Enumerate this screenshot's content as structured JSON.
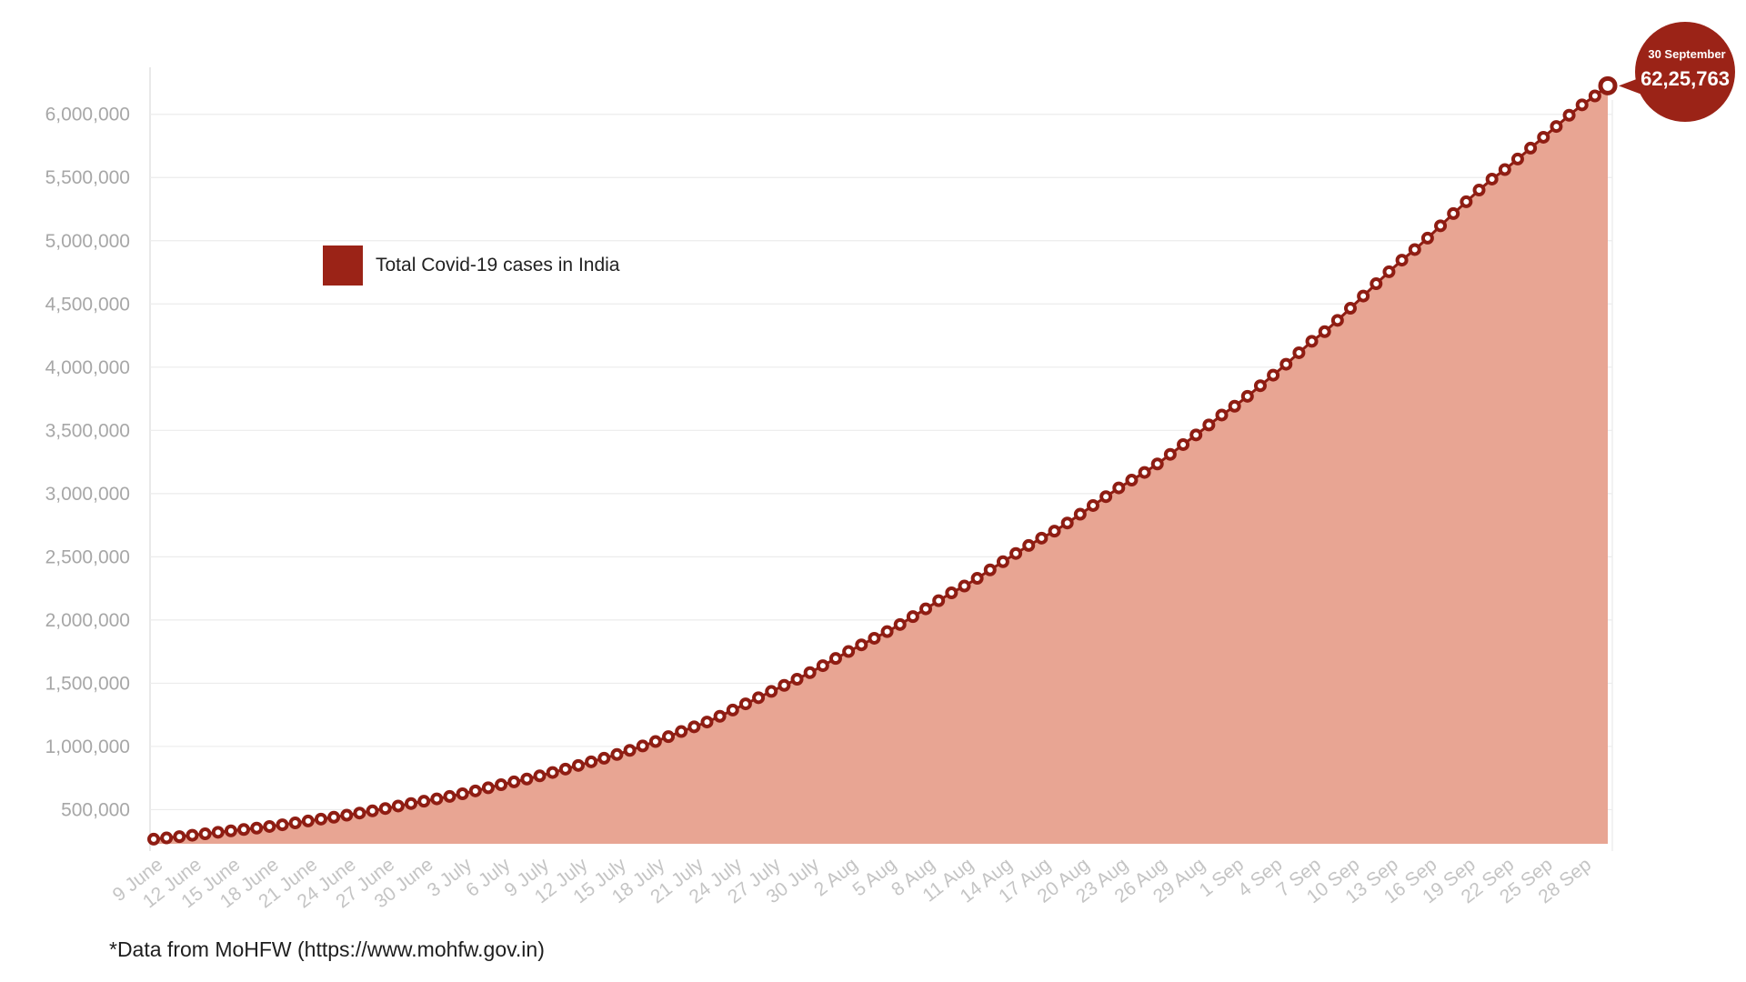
{
  "footnote": "*Data from MoHFW (https://www.mohfw.gov.in)",
  "colors": {
    "area": "#e8a593",
    "line": "#8f1d13",
    "marker_fill": "#ffffff",
    "badge": "#9b2317",
    "grid": "#ececec"
  },
  "chart_data": {
    "type": "area",
    "title": "",
    "xlabel": "",
    "ylabel": "",
    "legend": {
      "label": "Total Covid-19 cases in India",
      "position": "upper-left"
    },
    "y_ticks": [
      "500,000",
      "1,000,000",
      "1,500,000",
      "2,000,000",
      "2,500,000",
      "3,000,000",
      "3,500,000",
      "4,000,000",
      "4,500,000",
      "5,000,000",
      "5,500,000",
      "6,000,000"
    ],
    "ylim": [
      230000,
      6300000
    ],
    "x_ticks": [
      "9 June",
      "12 June",
      "15 June",
      "18 June",
      "21 June",
      "24 June",
      "27 June",
      "30 June",
      "3 July",
      "6 July",
      "9 July",
      "12 July",
      "15 July",
      "18 July",
      "21 July",
      "24 July",
      "27 July",
      "30 July",
      "2 Aug",
      "5 Aug",
      "8 Aug",
      "11 Aug",
      "14 Aug",
      "17 Aug",
      "20 Aug",
      "23 Aug",
      "26 Aug",
      "29 Aug",
      "1 Sep",
      "4 Sep",
      "7 Sep",
      "10 Sep",
      "13 Sep",
      "16 Sep",
      "19 Sep",
      "22 Sep",
      "25 Sep",
      "28 Sep"
    ],
    "x_start": "9 June",
    "x_end": "30 September",
    "annotation": {
      "date_label": "30 September",
      "value_label": "62,25,763"
    },
    "series": [
      {
        "name": "Total Covid-19 cases in India",
        "dates": [
          "9 June",
          "10 June",
          "11 June",
          "12 June",
          "13 June",
          "14 June",
          "15 June",
          "16 June",
          "17 June",
          "18 June",
          "19 June",
          "20 June",
          "21 June",
          "22 June",
          "23 June",
          "24 June",
          "25 June",
          "26 June",
          "27 June",
          "28 June",
          "29 June",
          "30 June",
          "1 July",
          "2 July",
          "3 July",
          "4 July",
          "5 July",
          "6 July",
          "7 July",
          "8 July",
          "9 July",
          "10 July",
          "11 July",
          "12 July",
          "13 July",
          "14 July",
          "15 July",
          "16 July",
          "17 July",
          "18 July",
          "19 July",
          "20 July",
          "21 July",
          "22 July",
          "23 July",
          "24 July",
          "25 July",
          "26 July",
          "27 July",
          "28 July",
          "29 July",
          "30 July",
          "31 July",
          "1 Aug",
          "2 Aug",
          "3 Aug",
          "4 Aug",
          "5 Aug",
          "6 Aug",
          "7 Aug",
          "8 Aug",
          "9 Aug",
          "10 Aug",
          "11 Aug",
          "12 Aug",
          "13 Aug",
          "14 Aug",
          "15 Aug",
          "16 Aug",
          "17 Aug",
          "18 Aug",
          "19 Aug",
          "20 Aug",
          "21 Aug",
          "22 Aug",
          "23 Aug",
          "24 Aug",
          "25 Aug",
          "26 Aug",
          "27 Aug",
          "28 Aug",
          "29 Aug",
          "30 Aug",
          "31 Aug",
          "1 Sep",
          "2 Sep",
          "3 Sep",
          "4 Sep",
          "5 Sep",
          "6 Sep",
          "7 Sep",
          "8 Sep",
          "9 Sep",
          "10 Sep",
          "11 Sep",
          "12 Sep",
          "13 Sep",
          "14 Sep",
          "15 Sep",
          "16 Sep",
          "17 Sep",
          "18 Sep",
          "19 Sep",
          "20 Sep",
          "21 Sep",
          "22 Sep",
          "23 Sep",
          "24 Sep",
          "25 Sep",
          "26 Sep",
          "27 Sep",
          "28 Sep",
          "29 Sep",
          "30 Sep"
        ],
        "values": [
          266598,
          276583,
          286579,
          297535,
          308993,
          320922,
          332424,
          343091,
          354065,
          366946,
          380532,
          395048,
          410461,
          425282,
          440215,
          456183,
          473105,
          490401,
          508953,
          528859,
          548318,
          566840,
          585493,
          604641,
          625544,
          648315,
          673165,
          697413,
          719665,
          742417,
          767296,
          793802,
          820916,
          849553,
          878254,
          906752,
          936181,
          968876,
          1003832,
          1038716,
          1077618,
          1118043,
          1155191,
          1192915,
          1238635,
          1287945,
          1336861,
          1385522,
          1435453,
          1483156,
          1531669,
          1583792,
          1638870,
          1695988,
          1750723,
          1803695,
          1855745,
          1908254,
          1964536,
          2027074,
          2088611,
          2153010,
          2215074,
          2268675,
          2329638,
          2396637,
          2461190,
          2526192,
          2589682,
          2647663,
          2702742,
          2767273,
          2836925,
          2905823,
          2975701,
          3044940,
          3106348,
          3167323,
          3234474,
          3310234,
          3387500,
          3463972,
          3542733,
          3621245,
          3691166,
          3769523,
          3853406,
          3936747,
          4023179,
          4113811,
          4204613,
          4280422,
          4370128,
          4465863,
          4562414,
          4659984,
          4754356,
          4846427,
          4930236,
          5020359,
          5118253,
          5214677,
          5308014,
          5400619,
          5487580,
          5562663,
          5646010,
          5732518,
          5818570,
          5903932,
          5992532,
          6074702,
          6145291,
          6225763
        ]
      }
    ]
  }
}
